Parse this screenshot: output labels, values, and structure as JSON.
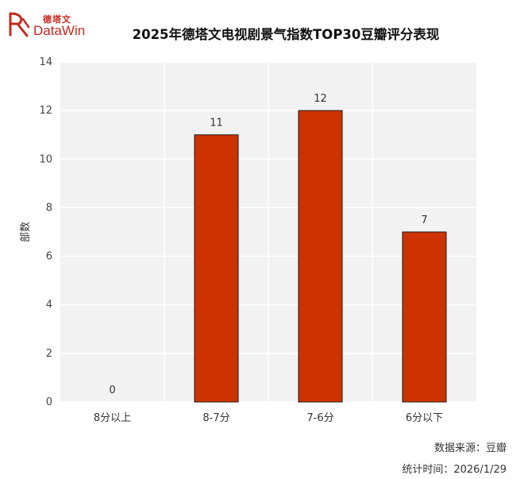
{
  "brand": {
    "cn_name": "德塔文",
    "en_name": "DataWin",
    "logo_icon": "datawin-logo-icon",
    "accent_color": "#c8281e"
  },
  "chart_data": {
    "type": "bar",
    "title": "2025年德塔文电视剧景气指数TOP30豆瓣评分表现",
    "xlabel": "",
    "ylabel": "部数",
    "categories": [
      "8分以上",
      "8-7分",
      "7-6分",
      "6分以下"
    ],
    "values": [
      0,
      11,
      12,
      7
    ],
    "data_labels": [
      "0",
      "11",
      "12",
      "7"
    ],
    "ylim": [
      0,
      14
    ],
    "yticks": [
      0,
      2,
      4,
      6,
      8,
      10,
      12,
      14
    ],
    "ytick_labels": [
      "0",
      "2",
      "4",
      "6",
      "8",
      "10",
      "12",
      "14"
    ],
    "grid": true,
    "legend": "none",
    "bar_color": "#cc3300",
    "bar_edge_color": "#1a1a1a",
    "plot_background": "#f2f2f2"
  },
  "footer": {
    "source": "数据来源：豆瓣",
    "date": "统计时间：2026/1/29"
  }
}
